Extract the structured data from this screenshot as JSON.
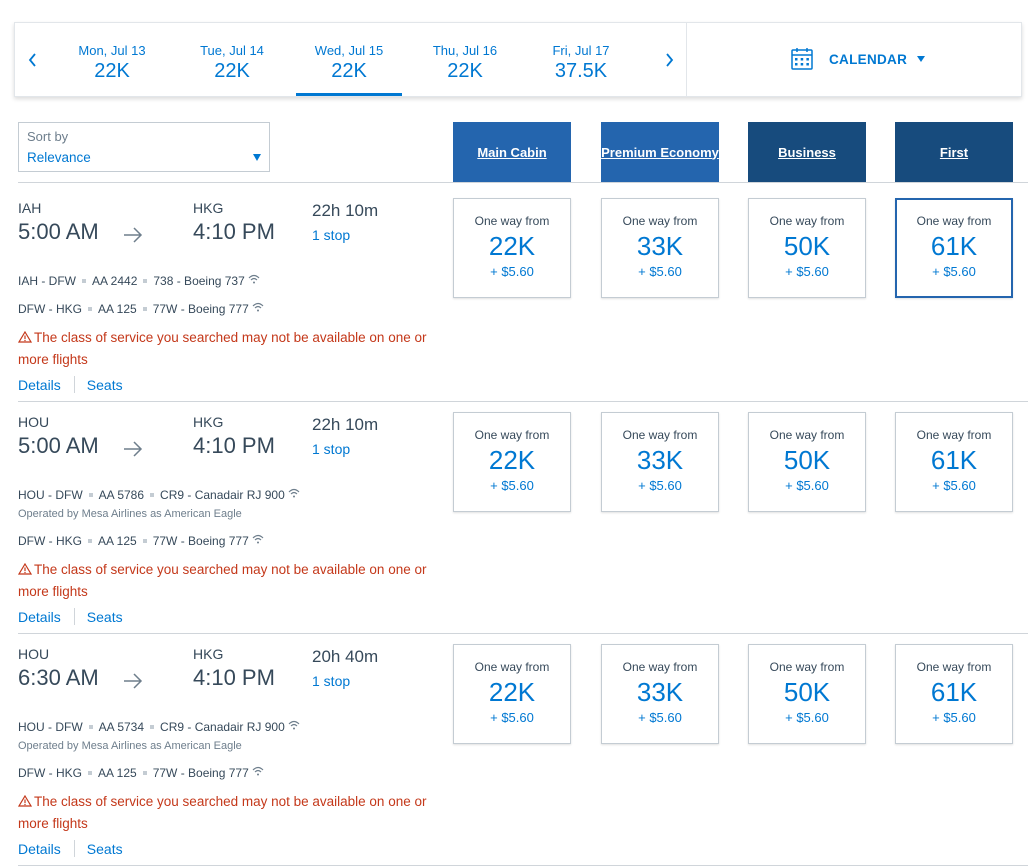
{
  "date_bar": {
    "days": [
      {
        "label": "Mon, Jul 13",
        "value": "22K"
      },
      {
        "label": "Tue, Jul 14",
        "value": "22K"
      },
      {
        "label": "Wed, Jul 15",
        "value": "22K",
        "selected": true
      },
      {
        "label": "Thu, Jul 16",
        "value": "22K"
      },
      {
        "label": "Fri, Jul 17",
        "value": "37.5K"
      }
    ],
    "calendar_label": "CALENDAR",
    "accent_color": "#0078d2"
  },
  "sort": {
    "label": "Sort by",
    "value": "Relevance"
  },
  "cabins": [
    "Main Cabin",
    "Premium Economy",
    "Business",
    "First"
  ],
  "fare_prefix": "One way from",
  "warning": "The class of service you searched may not be available on one or more flights",
  "details_label": "Details",
  "seats_label": "Seats",
  "flights": [
    {
      "origin": "IAH",
      "depart": "5:00 AM",
      "destination": "HKG",
      "arrive": "4:10 PM",
      "duration": "22h 10m",
      "stops": "1 stop",
      "segments": [
        {
          "route": "IAH - DFW",
          "flight": "AA 2442",
          "aircraft": "738 - Boeing 737",
          "wifi": true
        },
        {
          "route": "DFW - HKG",
          "flight": "AA 125",
          "aircraft": "77W - Boeing 777",
          "wifi": true
        }
      ],
      "fares": [
        {
          "miles": "22K",
          "tax": "+ $5.60"
        },
        {
          "miles": "33K",
          "tax": "+ $5.60"
        },
        {
          "miles": "50K",
          "tax": "+ $5.60"
        },
        {
          "miles": "61K",
          "tax": "+ $5.60",
          "selected": true
        }
      ]
    },
    {
      "origin": "HOU",
      "depart": "5:00 AM",
      "destination": "HKG",
      "arrive": "4:10 PM",
      "duration": "22h 10m",
      "stops": "1 stop",
      "segments": [
        {
          "route": "HOU - DFW",
          "flight": "AA 5786",
          "aircraft": "CR9 - Canadair RJ 900",
          "wifi": true,
          "operated_by": "Operated by Mesa Airlines as American Eagle"
        },
        {
          "route": "DFW - HKG",
          "flight": "AA 125",
          "aircraft": "77W - Boeing 777",
          "wifi": true
        }
      ],
      "fares": [
        {
          "miles": "22K",
          "tax": "+ $5.60"
        },
        {
          "miles": "33K",
          "tax": "+ $5.60"
        },
        {
          "miles": "50K",
          "tax": "+ $5.60"
        },
        {
          "miles": "61K",
          "tax": "+ $5.60"
        }
      ]
    },
    {
      "origin": "HOU",
      "depart": "6:30 AM",
      "destination": "HKG",
      "arrive": "4:10 PM",
      "duration": "20h 40m",
      "stops": "1 stop",
      "segments": [
        {
          "route": "HOU - DFW",
          "flight": "AA 5734",
          "aircraft": "CR9 - Canadair RJ 900",
          "wifi": true,
          "operated_by": "Operated by Mesa Airlines as American Eagle"
        },
        {
          "route": "DFW - HKG",
          "flight": "AA 125",
          "aircraft": "77W - Boeing 777",
          "wifi": true
        }
      ],
      "fares": [
        {
          "miles": "22K",
          "tax": "+ $5.60"
        },
        {
          "miles": "33K",
          "tax": "+ $5.60"
        },
        {
          "miles": "50K",
          "tax": "+ $5.60"
        },
        {
          "miles": "61K",
          "tax": "+ $5.60"
        }
      ]
    }
  ]
}
